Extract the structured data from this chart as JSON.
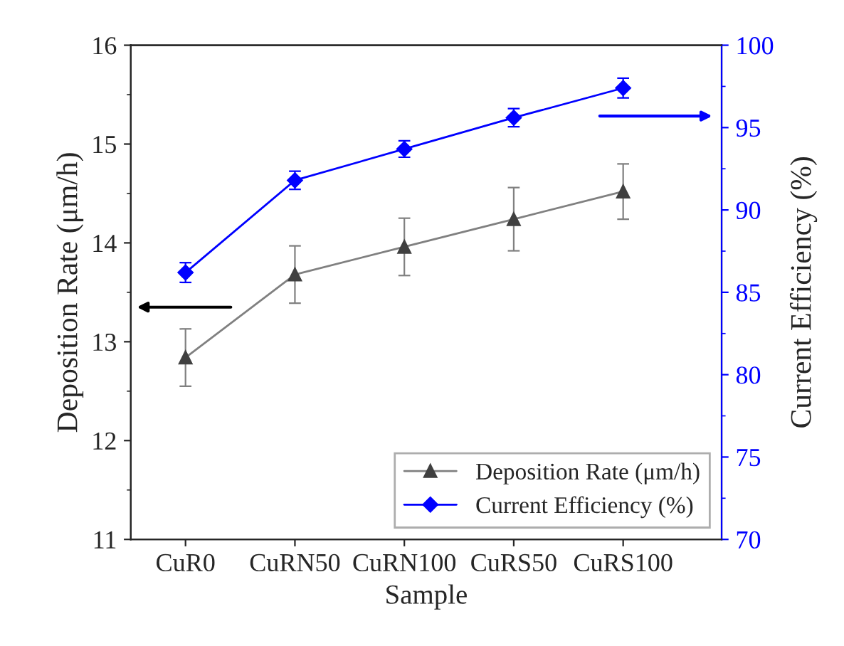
{
  "chart_data": {
    "type": "line",
    "xlabel": "Sample",
    "ylabel": "Deposition Rate (μm/h)",
    "y2label": "Current Efficiency (%)",
    "categories": [
      "CuR0",
      "CuRN50",
      "CuRN100",
      "CuRS50",
      "CuRS100"
    ],
    "series": [
      {
        "name": "Deposition Rate (μm/h)",
        "color": "#808080",
        "marker": "triangle",
        "values": [
          12.84,
          13.68,
          13.96,
          14.24,
          14.52
        ],
        "errors": [
          0.29,
          0.29,
          0.29,
          0.32,
          0.28
        ]
      },
      {
        "name": "Current Efficiency (%)",
        "color": "#0000ff",
        "marker": "diamond",
        "axis": "y2",
        "values": [
          86.2,
          91.8,
          93.7,
          95.6,
          97.4
        ],
        "errors": [
          0.6,
          0.55,
          0.5,
          0.55,
          0.6
        ]
      }
    ],
    "ylim": [
      11,
      16
    ],
    "yticks": [
      11,
      12,
      13,
      14,
      15,
      16
    ],
    "y2lim": [
      70,
      100
    ],
    "y2ticks": [
      70,
      75,
      80,
      85,
      90,
      95,
      100
    ],
    "grid": false,
    "legend": "bottom right",
    "line_style": "solid"
  }
}
